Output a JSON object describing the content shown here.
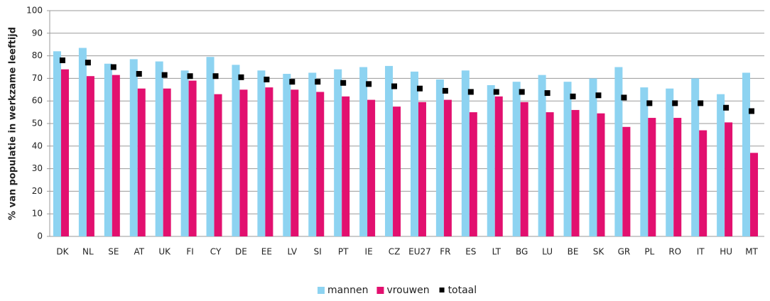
{
  "chart_data": {
    "type": "bar",
    "y_label": "% van populatie in werkzame leeftijd",
    "categories": [
      "DK",
      "NL",
      "SE",
      "AT",
      "UK",
      "FI",
      "CY",
      "DE",
      "EE",
      "LV",
      "SI",
      "PT",
      "IE",
      "CZ",
      "EU27",
      "FR",
      "ES",
      "LT",
      "BG",
      "LU",
      "BE",
      "SK",
      "GR",
      "PL",
      "RO",
      "IT",
      "HU",
      "MT"
    ],
    "series": [
      {
        "name": "mannen",
        "color": "#8dd3f1",
        "type": "bar",
        "values": [
          82,
          83.5,
          76.5,
          78.5,
          77.5,
          73.5,
          79.5,
          76,
          73.5,
          72,
          72.5,
          74,
          75,
          75.5,
          73,
          69.5,
          73.5,
          67,
          68.5,
          71.5,
          68.5,
          70,
          75,
          66,
          65.5,
          70,
          63,
          72.5
        ]
      },
      {
        "name": "vrouwen",
        "color": "#e2106f",
        "type": "bar",
        "values": [
          74,
          71,
          71.5,
          65.5,
          65.5,
          69,
          63,
          65,
          66,
          65,
          64,
          62,
          60.5,
          57.5,
          59.5,
          60.5,
          55,
          62,
          59.5,
          55,
          56,
          54.5,
          48.5,
          52.5,
          52.5,
          47,
          50.5,
          37
        ]
      },
      {
        "name": "totaal",
        "color": "#000000",
        "type": "scatter",
        "values": [
          78,
          77,
          75,
          72,
          71.5,
          71,
          71,
          70.5,
          69.5,
          68.5,
          68.5,
          68,
          67.5,
          66.5,
          65.5,
          64.5,
          64,
          64,
          64,
          63.5,
          62,
          62.5,
          61.5,
          59,
          59,
          59,
          57,
          55.5
        ]
      }
    ],
    "ylim": [
      0,
      100
    ],
    "yticks": [
      0,
      10,
      20,
      30,
      40,
      50,
      60,
      70,
      80,
      90,
      100
    ],
    "grid": true,
    "legend": "bottom"
  }
}
